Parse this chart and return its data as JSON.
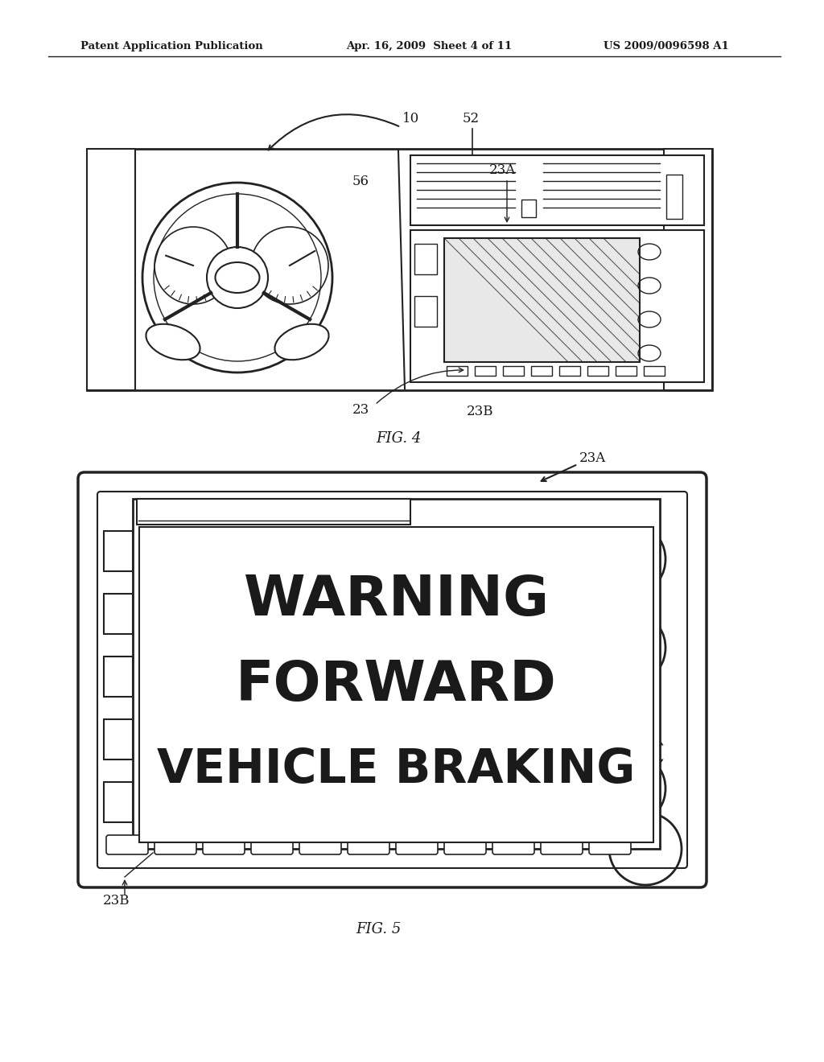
{
  "bg_color": "#ffffff",
  "header_text": "Patent Application Publication",
  "header_date": "Apr. 16, 2009  Sheet 4 of 11",
  "header_patent": "US 2009/0096598 A1",
  "fig4_label": "FIG. 4",
  "fig5_label": "FIG. 5",
  "fig4_ref10": "10",
  "fig4_ref52": "52",
  "fig4_ref56": "56",
  "fig4_ref23A": "23A",
  "fig4_ref23": "23",
  "fig4_ref23B": "23B",
  "fig5_ref23A": "23A",
  "fig5_ref23B": "23B",
  "warning_line1": "WARNING",
  "warning_line2": "FORWARD",
  "warning_line3": "VEHICLE BRAKING",
  "text_color": "#1a1a1a",
  "line_color": "#222222"
}
